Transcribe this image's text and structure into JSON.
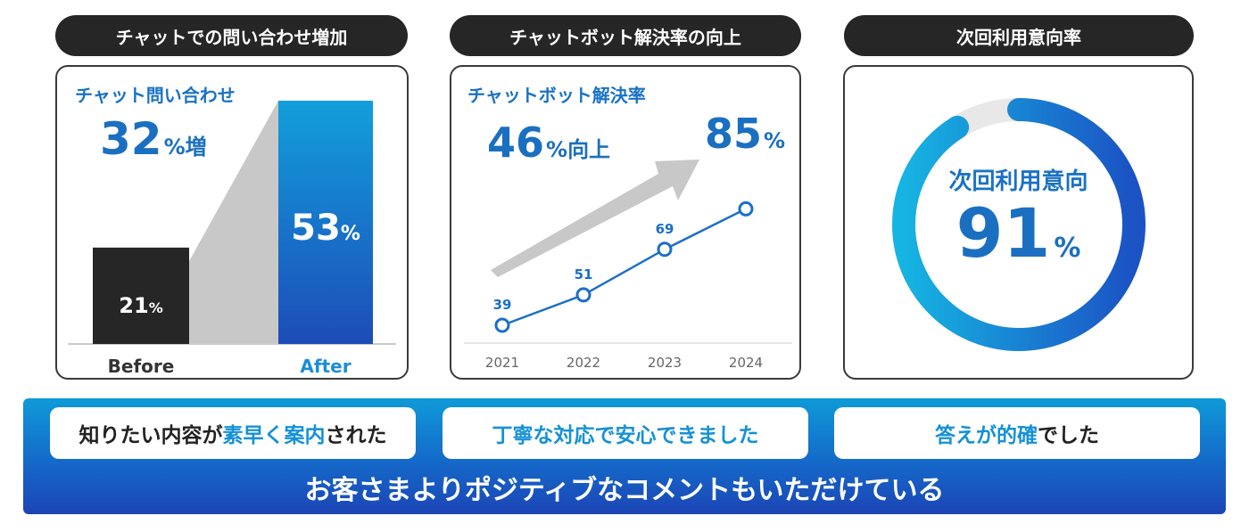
{
  "headers": [
    "チャットでの問い合わせ増加",
    "チャットボット解決率の向上",
    "次回利用意向率"
  ],
  "panel1": {
    "title": "チャット問い合わせ",
    "stat_value": "32",
    "stat_unit": "%増",
    "before_value": "21",
    "after_value": "53",
    "pct": "%",
    "before_label": "Before",
    "after_label": "After"
  },
  "panel2": {
    "title": "チャットボット解決率",
    "stat_value": "46",
    "stat_unit": "%向上",
    "target_value": "85",
    "target_unit": "%"
  },
  "panel3": {
    "label": "次回利用意向",
    "value": "91",
    "unit": "%"
  },
  "footer": {
    "cards": [
      {
        "pre": "知りたい内容が",
        "hl": "素早く案内",
        "post": "された"
      },
      {
        "text": "丁寧な対応で安心できました"
      },
      {
        "hl": "答えが的確",
        "post": "でした"
      }
    ],
    "message": "お客さまよりポジティブなコメントもいただけている"
  },
  "colors": {
    "accent": "#1b6fc0",
    "dark": "#262626",
    "gray": "#c8c8c8",
    "ring_track": "#e8e8e8"
  },
  "chart_data": [
    {
      "type": "bar",
      "categories": [
        "Before",
        "After"
      ],
      "values": [
        21,
        53
      ],
      "unit": "%",
      "title": "チャット問い合わせ"
    },
    {
      "type": "line",
      "x": [
        "2021",
        "2022",
        "2023",
        "2024"
      ],
      "series": [
        {
          "values": [
            39,
            51,
            69,
            85
          ]
        }
      ],
      "title": "チャットボット解決率",
      "ylim": [
        20,
        100
      ],
      "grid": false
    },
    {
      "type": "pie",
      "title": "次回利用意向",
      "values": [
        91,
        9
      ],
      "unit": "%"
    }
  ]
}
